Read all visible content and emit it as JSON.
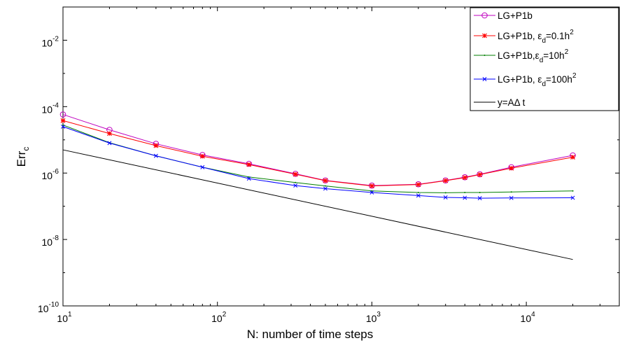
{
  "chart_data": {
    "type": "line",
    "xscale": "log",
    "yscale": "log",
    "xlim": [
      10,
      40000
    ],
    "ylim": [
      1e-10,
      0.1
    ],
    "xlabel": "N: number of time steps",
    "ylabel": {
      "main": "Err",
      "sub": "c"
    },
    "xticks": [
      {
        "value": 10,
        "base": "10",
        "exp": "1"
      },
      {
        "value": 100,
        "base": "10",
        "exp": "2"
      },
      {
        "value": 1000,
        "base": "10",
        "exp": "3"
      },
      {
        "value": 10000,
        "base": "10",
        "exp": "4"
      }
    ],
    "yticks": [
      {
        "value": 1e-10,
        "base": "10",
        "exp": "-10"
      },
      {
        "value": 1e-08,
        "base": "10",
        "exp": "-8"
      },
      {
        "value": 1e-06,
        "base": "10",
        "exp": "-6"
      },
      {
        "value": 0.0001,
        "base": "10",
        "exp": "-4"
      },
      {
        "value": 0.01,
        "base": "10",
        "exp": "-2"
      }
    ],
    "grid": false,
    "legend_position": "top-right",
    "series": [
      {
        "legend": {
          "pre": "LG+P1b",
          "greek": "",
          "sub": "",
          "post": "",
          "sup": ""
        },
        "color": "#bf00bf",
        "marker": "circle",
        "x": [
          10,
          20,
          40,
          80,
          160,
          320,
          500,
          1000,
          2000,
          3000,
          4000,
          5000,
          8000,
          20000
        ],
        "y": [
          5.8e-05,
          2e-05,
          7.6e-06,
          3.5e-06,
          1.9e-06,
          9.5e-07,
          6e-07,
          4.2e-07,
          4.6e-07,
          6e-07,
          7.5e-07,
          9.2e-07,
          1.5e-06,
          3.4e-06
        ]
      },
      {
        "legend": {
          "pre": "LG+P1b, ",
          "greek": "ε",
          "sub": "d",
          "post": "=0.1h",
          "sup": "2"
        },
        "color": "#ff0000",
        "marker": "star",
        "x": [
          10,
          20,
          40,
          80,
          160,
          320,
          500,
          1000,
          2000,
          3000,
          4000,
          5000,
          8000,
          20000
        ],
        "y": [
          3.8e-05,
          1.55e-05,
          6.7e-06,
          3.2e-06,
          1.8e-06,
          9.2e-07,
          5.9e-07,
          4.1e-07,
          4.5e-07,
          5.9e-07,
          7.3e-07,
          9e-07,
          1.4e-06,
          3e-06
        ]
      },
      {
        "legend": {
          "pre": "LG+P1b,",
          "greek": "ε",
          "sub": "d",
          "post": "=10h",
          "sup": "2"
        },
        "color": "#007f00",
        "marker": "dot",
        "x": [
          10,
          20,
          40,
          80,
          160,
          320,
          500,
          1000,
          2000,
          3000,
          4000,
          5000,
          8000,
          20000
        ],
        "y": [
          2.8e-05,
          8.2e-06,
          3.3e-06,
          1.5e-06,
          7.6e-07,
          5.2e-07,
          4.1e-07,
          2.9e-07,
          2.6e-07,
          2.55e-07,
          2.6e-07,
          2.6e-07,
          2.7e-07,
          2.9e-07
        ]
      },
      {
        "legend": {
          "pre": "LG+P1b, ",
          "greek": "ε",
          "sub": "d",
          "post": "=100h",
          "sup": "2"
        },
        "color": "#0000ff",
        "marker": "x",
        "x": [
          10,
          20,
          40,
          80,
          160,
          320,
          500,
          1000,
          2000,
          3000,
          4000,
          5000,
          8000,
          20000
        ],
        "y": [
          2.5e-05,
          8e-06,
          3.3e-06,
          1.5e-06,
          6.8e-07,
          4.2e-07,
          3.4e-07,
          2.6e-07,
          2.1e-07,
          1.85e-07,
          1.8e-07,
          1.75e-07,
          1.78e-07,
          1.8e-07
        ]
      },
      {
        "legend": {
          "pre": "y=A",
          "greek": "Δ",
          "sub": "",
          "post": " t",
          "sup": ""
        },
        "color": "#000000",
        "marker": "none",
        "x": [
          10,
          20000
        ],
        "y": [
          5e-06,
          2.5e-09
        ]
      }
    ]
  }
}
